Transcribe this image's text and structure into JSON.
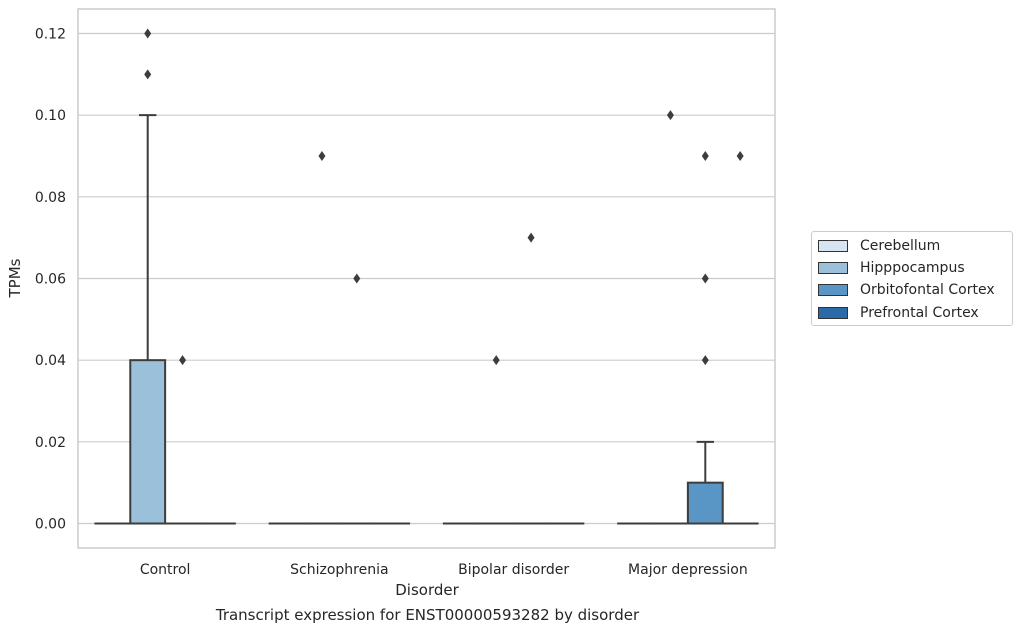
{
  "chart_data": {
    "type": "box",
    "xlabel": "Disorder",
    "ylabel": "TPMs",
    "caption": "Transcript expression for ENST00000593282 by disorder",
    "categories": [
      "Control",
      "Schizophrenia",
      "Bipolar disorder",
      "Major depression"
    ],
    "ylim": [
      -0.006,
      0.126
    ],
    "yticks": [
      0.0,
      0.02,
      0.04,
      0.06,
      0.08,
      0.1,
      0.12
    ],
    "ytick_labels": [
      "0.00",
      "0.02",
      "0.04",
      "0.06",
      "0.08",
      "0.10",
      "0.12"
    ],
    "grid": true,
    "legend_position": "right",
    "series": [
      {
        "name": "Cerebellum",
        "color": "#d6e5f1",
        "boxes": [
          {
            "q1": 0,
            "median": 0,
            "q3": 0,
            "whislo": 0,
            "whishi": 0,
            "fliers": []
          },
          {
            "q1": 0,
            "median": 0,
            "q3": 0,
            "whislo": 0,
            "whishi": 0,
            "fliers": []
          },
          {
            "q1": 0,
            "median": 0,
            "q3": 0,
            "whislo": 0,
            "whishi": 0,
            "fliers": []
          },
          {
            "q1": 0,
            "median": 0,
            "q3": 0,
            "whislo": 0,
            "whishi": 0,
            "fliers": []
          }
        ]
      },
      {
        "name": "Hipppocampus",
        "color": "#9bc1da",
        "boxes": [
          {
            "q1": 0,
            "median": 0,
            "q3": 0.04,
            "whislo": 0,
            "whishi": 0.1,
            "fliers": [
              0.11,
              0.12
            ]
          },
          {
            "q1": 0,
            "median": 0,
            "q3": 0,
            "whislo": 0,
            "whishi": 0,
            "fliers": [
              0.09
            ]
          },
          {
            "q1": 0,
            "median": 0,
            "q3": 0,
            "whislo": 0,
            "whishi": 0,
            "fliers": [
              0.04
            ]
          },
          {
            "q1": 0,
            "median": 0,
            "q3": 0,
            "whislo": 0,
            "whishi": 0,
            "fliers": [
              0.1
            ]
          }
        ]
      },
      {
        "name": "Orbitofontal Cortex",
        "color": "#5a96c5",
        "boxes": [
          {
            "q1": 0,
            "median": 0,
            "q3": 0,
            "whislo": 0,
            "whishi": 0,
            "fliers": [
              0.04
            ]
          },
          {
            "q1": 0,
            "median": 0,
            "q3": 0,
            "whislo": 0,
            "whishi": 0,
            "fliers": [
              0.06
            ]
          },
          {
            "q1": 0,
            "median": 0,
            "q3": 0,
            "whislo": 0,
            "whishi": 0,
            "fliers": [
              0.07
            ]
          },
          {
            "q1": 0,
            "median": 0,
            "q3": 0.01,
            "whislo": 0,
            "whishi": 0.02,
            "fliers": [
              0.04,
              0.06,
              0.09
            ]
          }
        ]
      },
      {
        "name": "Prefrontal Cortex",
        "color": "#2a6aa9",
        "boxes": [
          {
            "q1": 0,
            "median": 0,
            "q3": 0,
            "whislo": 0,
            "whishi": 0,
            "fliers": []
          },
          {
            "q1": 0,
            "median": 0,
            "q3": 0,
            "whislo": 0,
            "whishi": 0,
            "fliers": []
          },
          {
            "q1": 0,
            "median": 0,
            "q3": 0,
            "whislo": 0,
            "whishi": 0,
            "fliers": []
          },
          {
            "q1": 0,
            "median": 0,
            "q3": 0,
            "whislo": 0,
            "whishi": 0,
            "fliers": [
              0.09
            ]
          }
        ]
      }
    ]
  }
}
